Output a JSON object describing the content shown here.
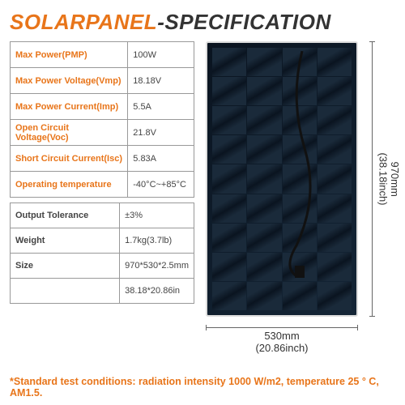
{
  "title_part1": "SOLARPANEL",
  "title_part2": "-SPECIFICATION",
  "colors": {
    "accent": "#e8751a",
    "text": "#444444",
    "border": "#999999",
    "panel_dark": "#0a1420",
    "panel_light": "#1a2a3a"
  },
  "spec_table": {
    "rows": [
      {
        "label": "Max Power(PMP)",
        "value": "100W"
      },
      {
        "label": "Max Power Voltage(Vmp)",
        "value": "18.18V"
      },
      {
        "label": "Max Power Current(Imp)",
        "value": "5.5A"
      },
      {
        "label": "Open Circuit Voltage(Voc)",
        "value": "21.8V"
      },
      {
        "label": "Short Circuit Current(Isc)",
        "value": "5.83A"
      },
      {
        "label": "Operating temperature",
        "value": "-40°C~+85°C"
      }
    ]
  },
  "phys_table": {
    "rows": [
      {
        "label": "Output Tolerance",
        "value": "±3%"
      },
      {
        "label": "Weight",
        "value": "1.7kg(3.7lb)"
      },
      {
        "label": "Size",
        "value": "970*530*2.5mm"
      },
      {
        "label": "",
        "value": "38.18*20.86in"
      }
    ]
  },
  "dimensions": {
    "height_mm": "970mm",
    "height_in": "(38.18inch)",
    "width_mm": "530mm",
    "width_in": "(20.86inch)"
  },
  "panel_grid": {
    "cols": 4,
    "rows": 9
  },
  "footnote": "*Standard test conditions: radiation intensity 1000 W/m2, temperature 25 ° C, AM1.5."
}
